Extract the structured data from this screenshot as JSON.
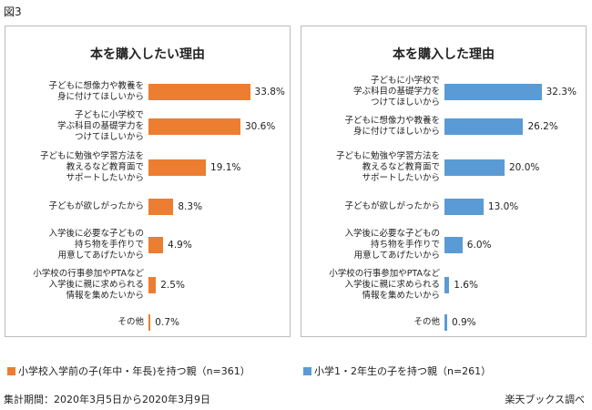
{
  "figure_label": "図3",
  "chart_data": [
    {
      "type": "bar",
      "title": "本を購入したい理由",
      "categories": [
        "子どもに想像力や教養を\n身に付けてほしいから",
        "子どもに小学校で\n学ぶ科目の基礎学力を\nつけてほしいから",
        "子どもに勉強や学習方法を\n教えるなど教育面で\nサポートしたいから",
        "子どもが欲しがったから",
        "入学後に必要な子どもの\n持ち物を手作りで\n用意してあげたいから",
        "小学校の行事参加やPTAなど\n入学後に親に求められる\n情報を集めたいから",
        "その他"
      ],
      "series": [
        {
          "name": "小学校入学前の子(年中・年長)を持つ親（n=361）",
          "color": "#ed7d31",
          "values": [
            33.8,
            30.6,
            19.1,
            8.3,
            4.9,
            2.5,
            0.7
          ],
          "value_labels": [
            "33.8%",
            "30.6%",
            "19.1%",
            "8.3%",
            "4.9%",
            "2.5%",
            "0.7%"
          ]
        }
      ]
    },
    {
      "type": "bar",
      "title": "本を購入した理由",
      "categories": [
        "子どもに小学校で\n学ぶ科目の基礎学力を\nつけてほしいから",
        "子どもに想像力や教養を\n身に付けてほしいから",
        "子どもに勉強や学習方法を\n教えるなど教育面で\nサポートしたいから",
        "子どもが欲しがったから",
        "入学後に必要な子どもの\n持ち物を手作りで\n用意してあげたいから",
        "小学校の行事参加やPTAなど\n入学後に親に求められる\n情報を集めたいから",
        "その他"
      ],
      "series": [
        {
          "name": "小学1・2年生の子を持つ親（n=261）",
          "color": "#5b9bd5",
          "values": [
            32.3,
            26.2,
            20.0,
            13.0,
            6.0,
            1.6,
            0.9
          ],
          "value_labels": [
            "32.3%",
            "26.2%",
            "20.0%",
            "13.0%",
            "6.0%",
            "1.6%",
            "0.9%"
          ]
        }
      ]
    }
  ],
  "footer": {
    "period": "集計期間：2020年3月5日から2020年3月9日",
    "source": "楽天ブックス調べ"
  }
}
